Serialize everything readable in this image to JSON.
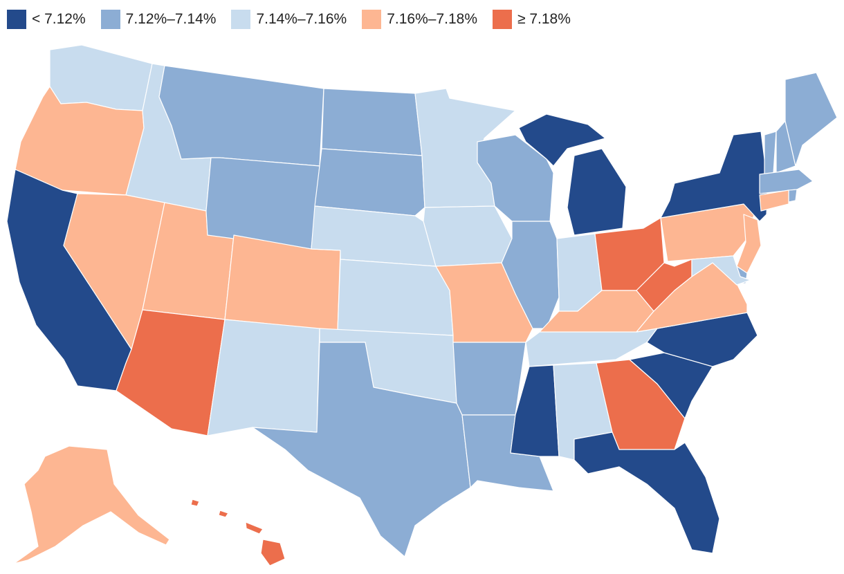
{
  "legend": [
    {
      "label": "< 7.12%",
      "color": "#234a8b"
    },
    {
      "label": "7.12%–7.14%",
      "color": "#8cadd4"
    },
    {
      "label": "7.14%–7.16%",
      "color": "#c8dcee"
    },
    {
      "label": "7.16%–7.18%",
      "color": "#fdb692"
    },
    {
      "label": "≥ 7.18%",
      "color": "#ec6e4c"
    }
  ],
  "states": [
    {
      "name": "Washington",
      "bin": 2
    },
    {
      "name": "Oregon",
      "bin": 3
    },
    {
      "name": "California",
      "bin": 0
    },
    {
      "name": "Idaho",
      "bin": 2
    },
    {
      "name": "Nevada",
      "bin": 3
    },
    {
      "name": "Utah",
      "bin": 3
    },
    {
      "name": "Arizona",
      "bin": 4
    },
    {
      "name": "Montana",
      "bin": 1
    },
    {
      "name": "Wyoming",
      "bin": 1
    },
    {
      "name": "Colorado",
      "bin": 3
    },
    {
      "name": "New Mexico",
      "bin": 2
    },
    {
      "name": "North Dakota",
      "bin": 1
    },
    {
      "name": "South Dakota",
      "bin": 1
    },
    {
      "name": "Nebraska",
      "bin": 2
    },
    {
      "name": "Kansas",
      "bin": 2
    },
    {
      "name": "Oklahoma",
      "bin": 2
    },
    {
      "name": "Texas",
      "bin": 1
    },
    {
      "name": "Minnesota",
      "bin": 2
    },
    {
      "name": "Iowa",
      "bin": 2
    },
    {
      "name": "Missouri",
      "bin": 3
    },
    {
      "name": "Arkansas",
      "bin": 1
    },
    {
      "name": "Louisiana",
      "bin": 1
    },
    {
      "name": "Wisconsin",
      "bin": 1
    },
    {
      "name": "Illinois",
      "bin": 1
    },
    {
      "name": "Michigan",
      "bin": 0
    },
    {
      "name": "Indiana",
      "bin": 2
    },
    {
      "name": "Ohio",
      "bin": 4
    },
    {
      "name": "Kentucky",
      "bin": 3
    },
    {
      "name": "Tennessee",
      "bin": 2
    },
    {
      "name": "Mississippi",
      "bin": 0
    },
    {
      "name": "Alabama",
      "bin": 2
    },
    {
      "name": "Georgia",
      "bin": 4
    },
    {
      "name": "Florida",
      "bin": 0
    },
    {
      "name": "South Carolina",
      "bin": 0
    },
    {
      "name": "North Carolina",
      "bin": 0
    },
    {
      "name": "Virginia",
      "bin": 3
    },
    {
      "name": "West Virginia",
      "bin": 4
    },
    {
      "name": "Pennsylvania",
      "bin": 3
    },
    {
      "name": "New York",
      "bin": 0
    },
    {
      "name": "Vermont",
      "bin": 1
    },
    {
      "name": "New Hampshire",
      "bin": 1
    },
    {
      "name": "Maine",
      "bin": 1
    },
    {
      "name": "Massachusetts",
      "bin": 1
    },
    {
      "name": "Rhode Island",
      "bin": 1
    },
    {
      "name": "Connecticut",
      "bin": 3
    },
    {
      "name": "New Jersey",
      "bin": 3
    },
    {
      "name": "Delaware",
      "bin": 1
    },
    {
      "name": "Maryland",
      "bin": 2
    },
    {
      "name": "Alaska",
      "bin": 3
    },
    {
      "name": "Hawaii",
      "bin": 4
    }
  ]
}
